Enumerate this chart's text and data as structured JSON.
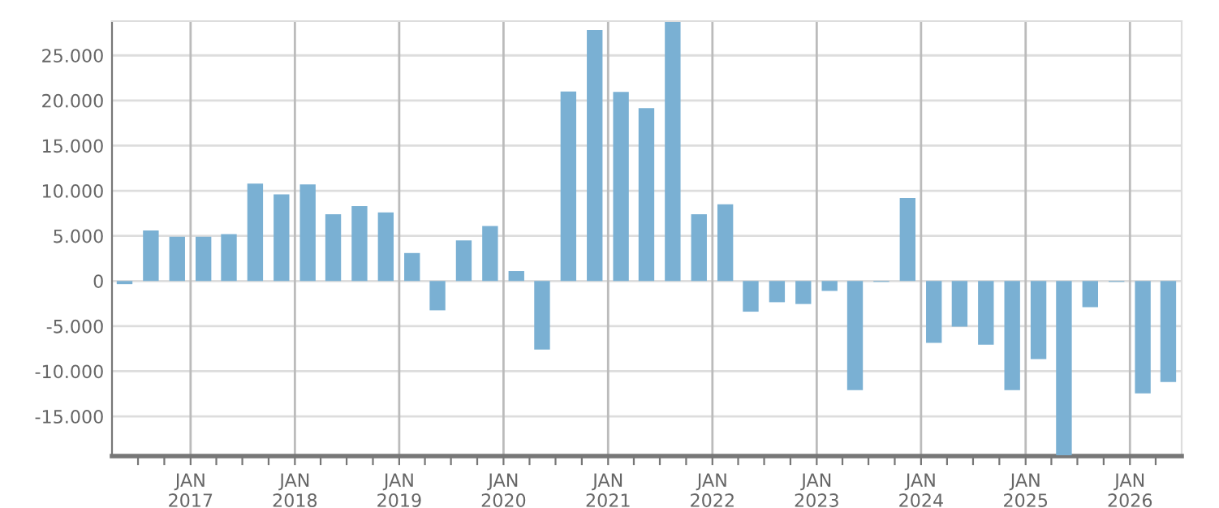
{
  "chart_data": {
    "type": "bar",
    "color": "#7ab0d3",
    "x": [
      "2016-05-15",
      "2016-08-15",
      "2016-11-15",
      "2017-02-15",
      "2017-05-15",
      "2017-08-15",
      "2017-11-15",
      "2018-02-15",
      "2018-05-15",
      "2018-08-15",
      "2018-11-15",
      "2019-02-15",
      "2019-05-15",
      "2019-08-15",
      "2019-11-15",
      "2020-02-15",
      "2020-05-15",
      "2020-08-15",
      "2020-11-15",
      "2021-02-15",
      "2021-05-15",
      "2021-08-15",
      "2021-11-15",
      "2022-02-15",
      "2022-05-15",
      "2022-08-15",
      "2022-11-15",
      "2023-02-15",
      "2023-05-15",
      "2023-08-15",
      "2023-11-15",
      "2024-02-15",
      "2024-05-15",
      "2024-08-15",
      "2024-11-15",
      "2025-02-15",
      "2025-05-15",
      "2025-08-15",
      "2025-11-15",
      "2026-02-15",
      "2026-05-15"
    ],
    "values": [
      -350,
      5600,
      4900,
      4900,
      5200,
      10800,
      9600,
      10700,
      7400,
      8300,
      7600,
      3100,
      -3250,
      4500,
      6100,
      1100,
      -7600,
      21000,
      27800,
      20950,
      19150,
      28700,
      7400,
      8500,
      -3400,
      -2350,
      -2550,
      -1100,
      -12100,
      -100,
      9200,
      -6850,
      -5050,
      -7050,
      -12100,
      -8650,
      -19300,
      -2900,
      -100,
      -12450,
      -11200
    ],
    "xlim": [
      "2016-04-01",
      "2026-07-01"
    ],
    "xticks": [
      {
        "value": "2016-07-01",
        "label": null
      },
      {
        "value": "2016-10-01",
        "label": null
      },
      {
        "value": "2017-01-01",
        "label": "JAN\n2017"
      },
      {
        "value": "2017-04-01",
        "label": null
      },
      {
        "value": "2017-07-01",
        "label": null
      },
      {
        "value": "2017-10-01",
        "label": null
      },
      {
        "value": "2018-01-01",
        "label": "JAN\n2018"
      },
      {
        "value": "2018-04-01",
        "label": null
      },
      {
        "value": "2018-07-01",
        "label": null
      },
      {
        "value": "2018-10-01",
        "label": null
      },
      {
        "value": "2019-01-01",
        "label": "JAN\n2019"
      },
      {
        "value": "2019-04-01",
        "label": null
      },
      {
        "value": "2019-07-01",
        "label": null
      },
      {
        "value": "2019-10-01",
        "label": null
      },
      {
        "value": "2020-01-01",
        "label": "JAN\n2020"
      },
      {
        "value": "2020-04-01",
        "label": null
      },
      {
        "value": "2020-07-01",
        "label": null
      },
      {
        "value": "2020-10-01",
        "label": null
      },
      {
        "value": "2021-01-01",
        "label": "JAN\n2021"
      },
      {
        "value": "2021-04-01",
        "label": null
      },
      {
        "value": "2021-07-01",
        "label": null
      },
      {
        "value": "2021-10-01",
        "label": null
      },
      {
        "value": "2022-01-01",
        "label": "JAN\n2022"
      },
      {
        "value": "2022-04-01",
        "label": null
      },
      {
        "value": "2022-07-01",
        "label": null
      },
      {
        "value": "2022-10-01",
        "label": null
      },
      {
        "value": "2023-01-01",
        "label": "JAN\n2023"
      },
      {
        "value": "2023-04-01",
        "label": null
      },
      {
        "value": "2023-07-01",
        "label": null
      },
      {
        "value": "2023-10-01",
        "label": null
      },
      {
        "value": "2024-01-01",
        "label": "JAN\n2024"
      },
      {
        "value": "2024-04-01",
        "label": null
      },
      {
        "value": "2024-07-01",
        "label": null
      },
      {
        "value": "2024-10-01",
        "label": null
      },
      {
        "value": "2025-01-01",
        "label": "JAN\n2025"
      },
      {
        "value": "2025-04-01",
        "label": null
      },
      {
        "value": "2025-07-01",
        "label": null
      },
      {
        "value": "2025-10-01",
        "label": null
      },
      {
        "value": "2026-01-01",
        "label": "JAN\n2026"
      },
      {
        "value": "2026-04-01",
        "label": null
      }
    ],
    "ylim": [
      -19400,
      28800
    ],
    "yticks": [
      {
        "value": -15000,
        "label": "-15.000"
      },
      {
        "value": -10000,
        "label": "-10.000"
      },
      {
        "value": -5000,
        "label": "-5.000"
      },
      {
        "value": 0,
        "label": "0"
      },
      {
        "value": 5000,
        "label": "5.000"
      },
      {
        "value": 10000,
        "label": "10.000"
      },
      {
        "value": 15000,
        "label": "15.000"
      },
      {
        "value": 20000,
        "label": "20.000"
      },
      {
        "value": 25000,
        "label": "25.000"
      }
    ],
    "grid": true
  }
}
